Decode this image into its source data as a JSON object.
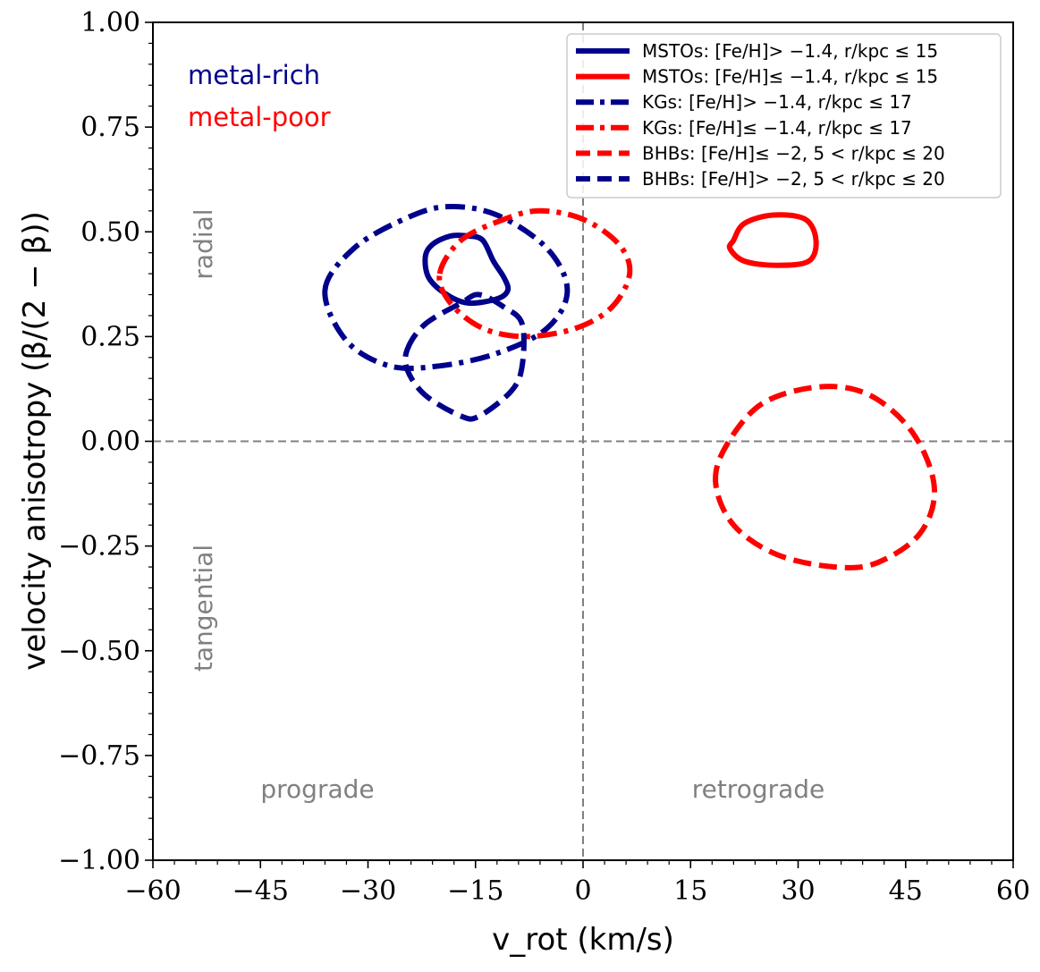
{
  "chart_data": {
    "type": "contour",
    "xlabel": "v_rot (km/s)",
    "ylabel": "velocity anisotropy (β/(2 − β))",
    "xlim": [
      -60,
      60
    ],
    "ylim": [
      -1.0,
      1.0
    ],
    "xticks": [
      -60,
      -45,
      -30,
      -15,
      0,
      15,
      30,
      45,
      60
    ],
    "yticks": [
      -1.0,
      -0.75,
      -0.5,
      -0.25,
      0.0,
      0.25,
      0.5,
      0.75,
      1.0
    ],
    "xtick_labels": [
      "−60",
      "−45",
      "−30",
      "−15",
      "0",
      "15",
      "30",
      "45",
      "60"
    ],
    "ytick_labels": [
      "−1.00",
      "−0.75",
      "−0.50",
      "−0.25",
      "0.00",
      "0.25",
      "0.50",
      "0.75",
      "1.00"
    ],
    "reference_lines": {
      "x": 0,
      "y": 0
    },
    "region_labels": {
      "radial": "radial",
      "tangential": "tangential",
      "prograde": "prograde",
      "retrograde": "retrograde"
    },
    "group_labels": {
      "metal_rich": "metal-rich",
      "metal_poor": "metal-poor"
    },
    "colors": {
      "metal_rich": "#00008b",
      "metal_poor": "#ff0000",
      "reference": "#808080"
    },
    "legend_position": "top-right",
    "series": [
      {
        "name": "MSTOs: [Fe/H]> −1.4, r/kpc ≤ 15",
        "color": "#00008b",
        "style": "solid",
        "contour": [
          [
            -16,
            0.49
          ],
          [
            -14,
            0.48
          ],
          [
            -12.5,
            0.43
          ],
          [
            -11,
            0.39
          ],
          [
            -10.5,
            0.36
          ],
          [
            -12,
            0.34
          ],
          [
            -16,
            0.33
          ],
          [
            -19,
            0.35
          ],
          [
            -21.5,
            0.39
          ],
          [
            -22,
            0.44
          ],
          [
            -21,
            0.47
          ],
          [
            -18.5,
            0.49
          ]
        ]
      },
      {
        "name": "MSTOs: [Fe/H]≤ −1.4, r/kpc ≤ 15",
        "color": "#ff0000",
        "style": "solid",
        "contour": [
          [
            21,
            0.48
          ],
          [
            22.5,
            0.52
          ],
          [
            26.5,
            0.54
          ],
          [
            31,
            0.53
          ],
          [
            32.5,
            0.48
          ],
          [
            31.5,
            0.43
          ],
          [
            27,
            0.42
          ],
          [
            22.5,
            0.43
          ],
          [
            20.5,
            0.46
          ]
        ]
      },
      {
        "name": "KGs: [Fe/H]> −1.4, r/kpc ≤ 17",
        "color": "#00008b",
        "style": "dashdot",
        "contour": [
          [
            -36,
            0.36
          ],
          [
            -32,
            0.46
          ],
          [
            -25,
            0.53
          ],
          [
            -19,
            0.56
          ],
          [
            -12,
            0.54
          ],
          [
            -5,
            0.46
          ],
          [
            -2.2,
            0.36
          ],
          [
            -5,
            0.27
          ],
          [
            -12,
            0.21
          ],
          [
            -20,
            0.18
          ],
          [
            -27,
            0.18
          ],
          [
            -33,
            0.24
          ]
        ]
      },
      {
        "name": "KGs: [Fe/H]≤ −1.4, r/kpc ≤ 17",
        "color": "#ff0000",
        "style": "dashdot",
        "contour": [
          [
            -20,
            0.4
          ],
          [
            -17,
            0.48
          ],
          [
            -11,
            0.53
          ],
          [
            -6,
            0.55
          ],
          [
            0,
            0.53
          ],
          [
            5,
            0.47
          ],
          [
            6.5,
            0.4
          ],
          [
            4,
            0.32
          ],
          [
            -1,
            0.27
          ],
          [
            -8,
            0.25
          ],
          [
            -14,
            0.27
          ],
          [
            -18.5,
            0.33
          ]
        ]
      },
      {
        "name": "BHBs: [Fe/H]≤ −2, 5 < r/kpc ≤ 20",
        "color": "#ff0000",
        "style": "dashed",
        "contour": [
          [
            18.5,
            -0.1
          ],
          [
            20,
            -0.01
          ],
          [
            25,
            0.09
          ],
          [
            33,
            0.13
          ],
          [
            40,
            0.11
          ],
          [
            46,
            0.02
          ],
          [
            49,
            -0.11
          ],
          [
            47,
            -0.22
          ],
          [
            41,
            -0.29
          ],
          [
            35,
            -0.3
          ],
          [
            27,
            -0.27
          ],
          [
            21,
            -0.2
          ]
        ]
      },
      {
        "name": "BHBs: [Fe/H]> −2, 5 < r/kpc ≤ 20",
        "color": "#00008b",
        "style": "dashed",
        "contour": [
          [
            -24.5,
            0.22
          ],
          [
            -22,
            0.28
          ],
          [
            -17,
            0.33
          ],
          [
            -14.5,
            0.35
          ],
          [
            -11,
            0.32
          ],
          [
            -8.5,
            0.28
          ],
          [
            -8.5,
            0.18
          ],
          [
            -10,
            0.12
          ],
          [
            -14.5,
            0.06
          ],
          [
            -17,
            0.06
          ],
          [
            -22,
            0.11
          ],
          [
            -24.5,
            0.17
          ]
        ]
      }
    ]
  }
}
